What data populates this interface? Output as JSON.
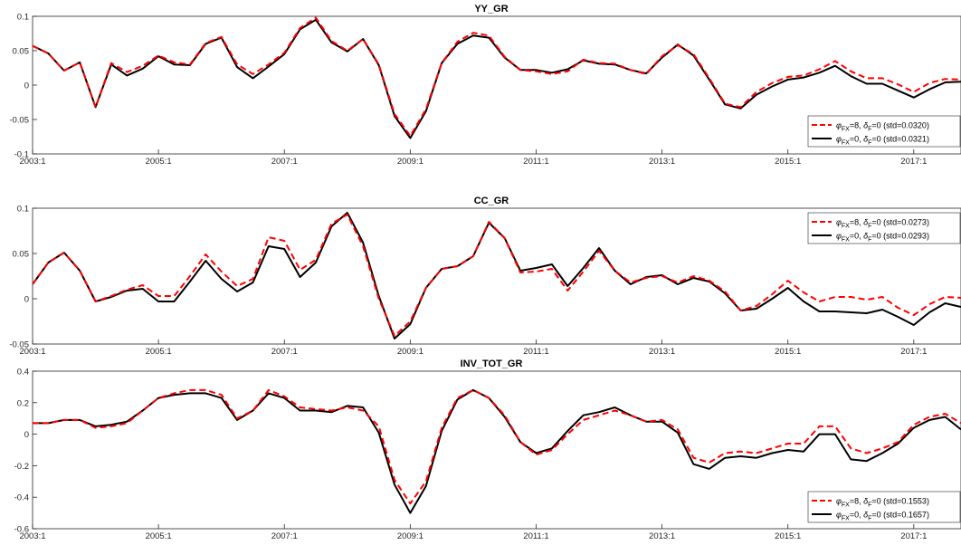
{
  "chart_data": [
    {
      "type": "line",
      "title": "YY_GR",
      "xlabel": "",
      "ylabel": "",
      "x_start": "2003:1",
      "x_end": "2017:4",
      "xticks": [
        "2003:1",
        "2005:1",
        "2007:1",
        "2009:1",
        "2011:1",
        "2013:1",
        "2015:1",
        "2017:1"
      ],
      "ylim": [
        -0.1,
        0.1
      ],
      "yticks": [
        -0.1,
        -0.05,
        0,
        0.05,
        0.1
      ],
      "yticklabels": [
        "-0.1",
        "-0.05",
        "0",
        "0.05",
        "0.1"
      ],
      "legend_position": "bottom-right",
      "grid": false,
      "series": [
        {
          "name": "φFX=8, δF=0 (std=0.0320)",
          "sym1": "φ",
          "sub1": "FX",
          "val1": "=8, ",
          "sym2": "δ",
          "sub2": "F",
          "val2": "=0 (std=0.0320)",
          "color": "#ff0000",
          "dash": true,
          "values": [
            0.057,
            0.046,
            0.021,
            0.033,
            -0.032,
            0.032,
            0.019,
            0.028,
            0.043,
            0.033,
            0.03,
            0.061,
            0.07,
            0.03,
            0.016,
            0.03,
            0.047,
            0.083,
            0.098,
            0.064,
            0.05,
            0.067,
            0.03,
            -0.042,
            -0.074,
            -0.035,
            0.032,
            0.063,
            0.076,
            0.072,
            0.041,
            0.022,
            0.02,
            0.016,
            0.02,
            0.037,
            0.032,
            0.031,
            0.022,
            0.016,
            0.042,
            0.058,
            0.045,
            0.01,
            -0.027,
            -0.032,
            -0.01,
            0.003,
            0.012,
            0.014,
            0.023,
            0.035,
            0.02,
            0.01,
            0.01,
            0.001,
            -0.01,
            0.003,
            0.009,
            0.008
          ]
        },
        {
          "name": "φFX=0, δF=0 (std=0.0321)",
          "sym1": "φ",
          "sub1": "FX",
          "val1": "=0, ",
          "sym2": "δ",
          "sub2": "F",
          "val2": "=0 (std=0.0321)",
          "color": "#000000",
          "dash": false,
          "values": [
            0.057,
            0.046,
            0.021,
            0.033,
            -0.032,
            0.03,
            0.014,
            0.024,
            0.042,
            0.03,
            0.029,
            0.06,
            0.069,
            0.026,
            0.01,
            0.027,
            0.045,
            0.081,
            0.095,
            0.062,
            0.049,
            0.067,
            0.029,
            -0.045,
            -0.077,
            -0.038,
            0.032,
            0.06,
            0.072,
            0.069,
            0.04,
            0.022,
            0.022,
            0.018,
            0.023,
            0.036,
            0.031,
            0.03,
            0.022,
            0.017,
            0.04,
            0.059,
            0.043,
            0.008,
            -0.028,
            -0.034,
            -0.014,
            -0.002,
            0.008,
            0.011,
            0.018,
            0.028,
            0.013,
            0.002,
            0.002,
            -0.008,
            -0.018,
            -0.006,
            0.004,
            0.005
          ]
        }
      ]
    },
    {
      "type": "line",
      "title": "CC_GR",
      "xlabel": "",
      "ylabel": "",
      "x_start": "2003:1",
      "x_end": "2017:4",
      "xticks": [
        "2003:1",
        "2005:1",
        "2007:1",
        "2009:1",
        "2011:1",
        "2013:1",
        "2015:1",
        "2017:1"
      ],
      "ylim": [
        -0.05,
        0.1
      ],
      "yticks": [
        -0.05,
        0,
        0.05,
        0.1
      ],
      "yticklabels": [
        "-0.05",
        "0",
        "0.05",
        "0.1"
      ],
      "legend_position": "top-right",
      "grid": false,
      "series": [
        {
          "name": "φFX=8, δF=0 (std=0.0273)",
          "sym1": "φ",
          "sub1": "FX",
          "val1": "=8, ",
          "sym2": "δ",
          "sub2": "F",
          "val2": "=0 (std=0.0273)",
          "color": "#ff0000",
          "dash": true,
          "values": [
            0.016,
            0.04,
            0.051,
            0.031,
            -0.003,
            0.003,
            0.01,
            0.015,
            0.003,
            0.003,
            0.025,
            0.049,
            0.03,
            0.014,
            0.022,
            0.068,
            0.064,
            0.032,
            0.043,
            0.083,
            0.093,
            0.058,
            0.0,
            -0.041,
            -0.025,
            0.012,
            0.033,
            0.036,
            0.047,
            0.085,
            0.067,
            0.029,
            0.03,
            0.033,
            0.009,
            0.03,
            0.053,
            0.031,
            0.018,
            0.023,
            0.025,
            0.018,
            0.025,
            0.02,
            0.008,
            -0.013,
            -0.008,
            0.005,
            0.02,
            0.007,
            -0.003,
            0.002,
            0.002,
            -0.001,
            0.002,
            -0.01,
            -0.018,
            -0.006,
            0.002,
            0.001
          ]
        },
        {
          "name": "φFX=0, δF=0 (std=0.0293)",
          "sym1": "φ",
          "sub1": "FX",
          "val1": "=0, ",
          "sym2": "δ",
          "sub2": "F",
          "val2": "=0 (std=0.0293)",
          "color": "#000000",
          "dash": false,
          "values": [
            0.016,
            0.04,
            0.051,
            0.031,
            -0.003,
            0.002,
            0.009,
            0.011,
            -0.003,
            -0.003,
            0.019,
            0.042,
            0.022,
            0.008,
            0.018,
            0.058,
            0.055,
            0.024,
            0.04,
            0.08,
            0.095,
            0.062,
            0.003,
            -0.044,
            -0.028,
            0.012,
            0.033,
            0.036,
            0.047,
            0.084,
            0.067,
            0.031,
            0.034,
            0.038,
            0.014,
            0.034,
            0.056,
            0.031,
            0.016,
            0.024,
            0.026,
            0.016,
            0.023,
            0.019,
            0.006,
            -0.013,
            -0.011,
            0.0,
            0.012,
            -0.003,
            -0.014,
            -0.014,
            -0.015,
            -0.016,
            -0.012,
            -0.02,
            -0.029,
            -0.015,
            -0.005,
            -0.009
          ]
        }
      ]
    },
    {
      "type": "line",
      "title": "INV_TOT_GR",
      "xlabel": "",
      "ylabel": "",
      "x_start": "2003:1",
      "x_end": "2017:4",
      "xticks": [
        "2003:1",
        "2005:1",
        "2007:1",
        "2009:1",
        "2011:1",
        "2013:1",
        "2015:1",
        "2017:1"
      ],
      "ylim": [
        -0.6,
        0.4
      ],
      "yticks": [
        -0.6,
        -0.4,
        -0.2,
        0,
        0.2,
        0.4
      ],
      "yticklabels": [
        "-0.6",
        "-0.4",
        "-0.2",
        "0",
        "0.2",
        "0.4"
      ],
      "legend_position": "bottom-right",
      "grid": false,
      "series": [
        {
          "name": "φFX=8, δF=0 (std=0.1553)",
          "sym1": "φ",
          "sub1": "FX",
          "val1": "=8, ",
          "sym2": "δ",
          "sub2": "F",
          "val2": "=0 (std=0.1553)",
          "color": "#ff0000",
          "dash": true,
          "values": [
            0.07,
            0.07,
            0.09,
            0.09,
            0.04,
            0.05,
            0.07,
            0.15,
            0.23,
            0.26,
            0.28,
            0.28,
            0.25,
            0.1,
            0.15,
            0.28,
            0.24,
            0.17,
            0.16,
            0.15,
            0.17,
            0.15,
            0.05,
            -0.29,
            -0.44,
            -0.3,
            0.04,
            0.23,
            0.28,
            0.23,
            0.12,
            -0.05,
            -0.13,
            -0.1,
            0.0,
            0.09,
            0.12,
            0.15,
            0.12,
            0.08,
            0.09,
            0.03,
            -0.15,
            -0.18,
            -0.12,
            -0.11,
            -0.12,
            -0.09,
            -0.06,
            -0.06,
            0.05,
            0.05,
            -0.09,
            -0.12,
            -0.09,
            -0.05,
            0.06,
            0.11,
            0.13,
            0.07
          ]
        },
        {
          "name": "φFX=0, δF=0 (std=0.1657)",
          "sym1": "φ",
          "sub1": "FX",
          "val1": "=0, ",
          "sym2": "δ",
          "sub2": "F",
          "val2": "=0 (std=0.1657)",
          "color": "#000000",
          "dash": false,
          "values": [
            0.07,
            0.07,
            0.09,
            0.09,
            0.05,
            0.06,
            0.08,
            0.15,
            0.23,
            0.25,
            0.26,
            0.26,
            0.23,
            0.09,
            0.15,
            0.26,
            0.23,
            0.15,
            0.15,
            0.14,
            0.18,
            0.17,
            0.01,
            -0.32,
            -0.5,
            -0.33,
            0.02,
            0.22,
            0.28,
            0.23,
            0.11,
            -0.05,
            -0.12,
            -0.09,
            0.02,
            0.12,
            0.14,
            0.17,
            0.12,
            0.08,
            0.08,
            0.01,
            -0.19,
            -0.22,
            -0.15,
            -0.14,
            -0.15,
            -0.12,
            -0.1,
            -0.11,
            0.0,
            0.0,
            -0.16,
            -0.17,
            -0.12,
            -0.06,
            0.04,
            0.09,
            0.11,
            0.03
          ]
        }
      ]
    }
  ]
}
